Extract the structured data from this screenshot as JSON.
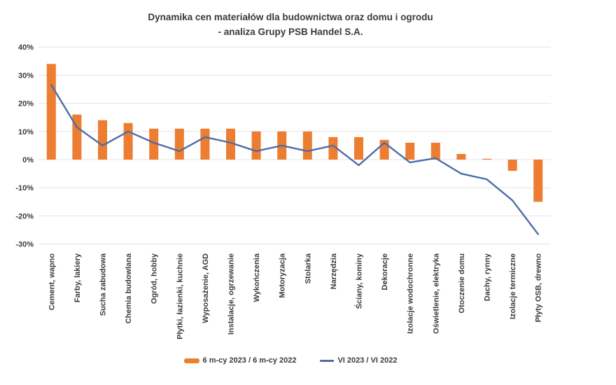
{
  "title": {
    "line1": "Dynamika cen materiałów dla budownictwa oraz domu i ogrodu",
    "line2": "- analiza Grupy PSB Handel S.A."
  },
  "colors": {
    "bar": "#ED7D31",
    "line": "#4E6DA8",
    "grid": "#E3E3E3",
    "text": "#3B3B3B",
    "background": "#FFFFFF"
  },
  "chart_data": {
    "type": "bar",
    "subtype": "combo bar + line, percent scale",
    "title": "Dynamika cen materiałów dla budownictwa oraz domu i ogrodu - analiza Grupy PSB Handel S.A.",
    "xlabel": "",
    "ylabel": "",
    "ylim": [
      -30,
      40
    ],
    "ytick_step": 10,
    "ytick_values": [
      40,
      30,
      20,
      10,
      0,
      -10,
      -20,
      -30
    ],
    "ytick_labels": [
      "40%",
      "30%",
      "20%",
      "10%",
      "0%",
      "-10%",
      "-20%",
      "-30%"
    ],
    "grid": true,
    "legend_position": "bottom",
    "categories": [
      "Cement, wapno",
      "Farby, lakiery",
      "Sucha zabudowa",
      "Chemia budowlana",
      "Ogród, hobby",
      "Płytki, łazienki, kuchnie",
      "Wyposażenie, AGD",
      "Instalacje, ogrzewanie",
      "Wykończenia",
      "Motoryzacja",
      "Stolarka",
      "Narzędzia",
      "Ściany, kominy",
      "Dekoracje",
      "Izolacje wodochronne",
      "Oświetlenie, elektryka",
      "Otoczenie domu",
      "Dachy, rynny",
      "Izolacje termiczne",
      "Płyty OSB, drewno"
    ],
    "series": [
      {
        "name": "6 m-cy 2023 / 6 m-cy 2022",
        "type": "bar",
        "values": [
          34,
          16,
          14,
          13,
          11,
          11,
          11,
          11,
          10,
          10,
          10,
          8,
          8,
          7,
          6,
          6,
          2,
          0.3,
          -4,
          -15
        ]
      },
      {
        "name": "VI 2023 / VI 2022",
        "type": "line",
        "values": [
          26.5,
          11.5,
          5,
          10,
          6,
          3,
          8,
          6,
          3,
          5,
          3,
          5,
          -2,
          6,
          -1,
          0.5,
          -5,
          -7,
          -14.5,
          -26.5
        ]
      }
    ]
  }
}
